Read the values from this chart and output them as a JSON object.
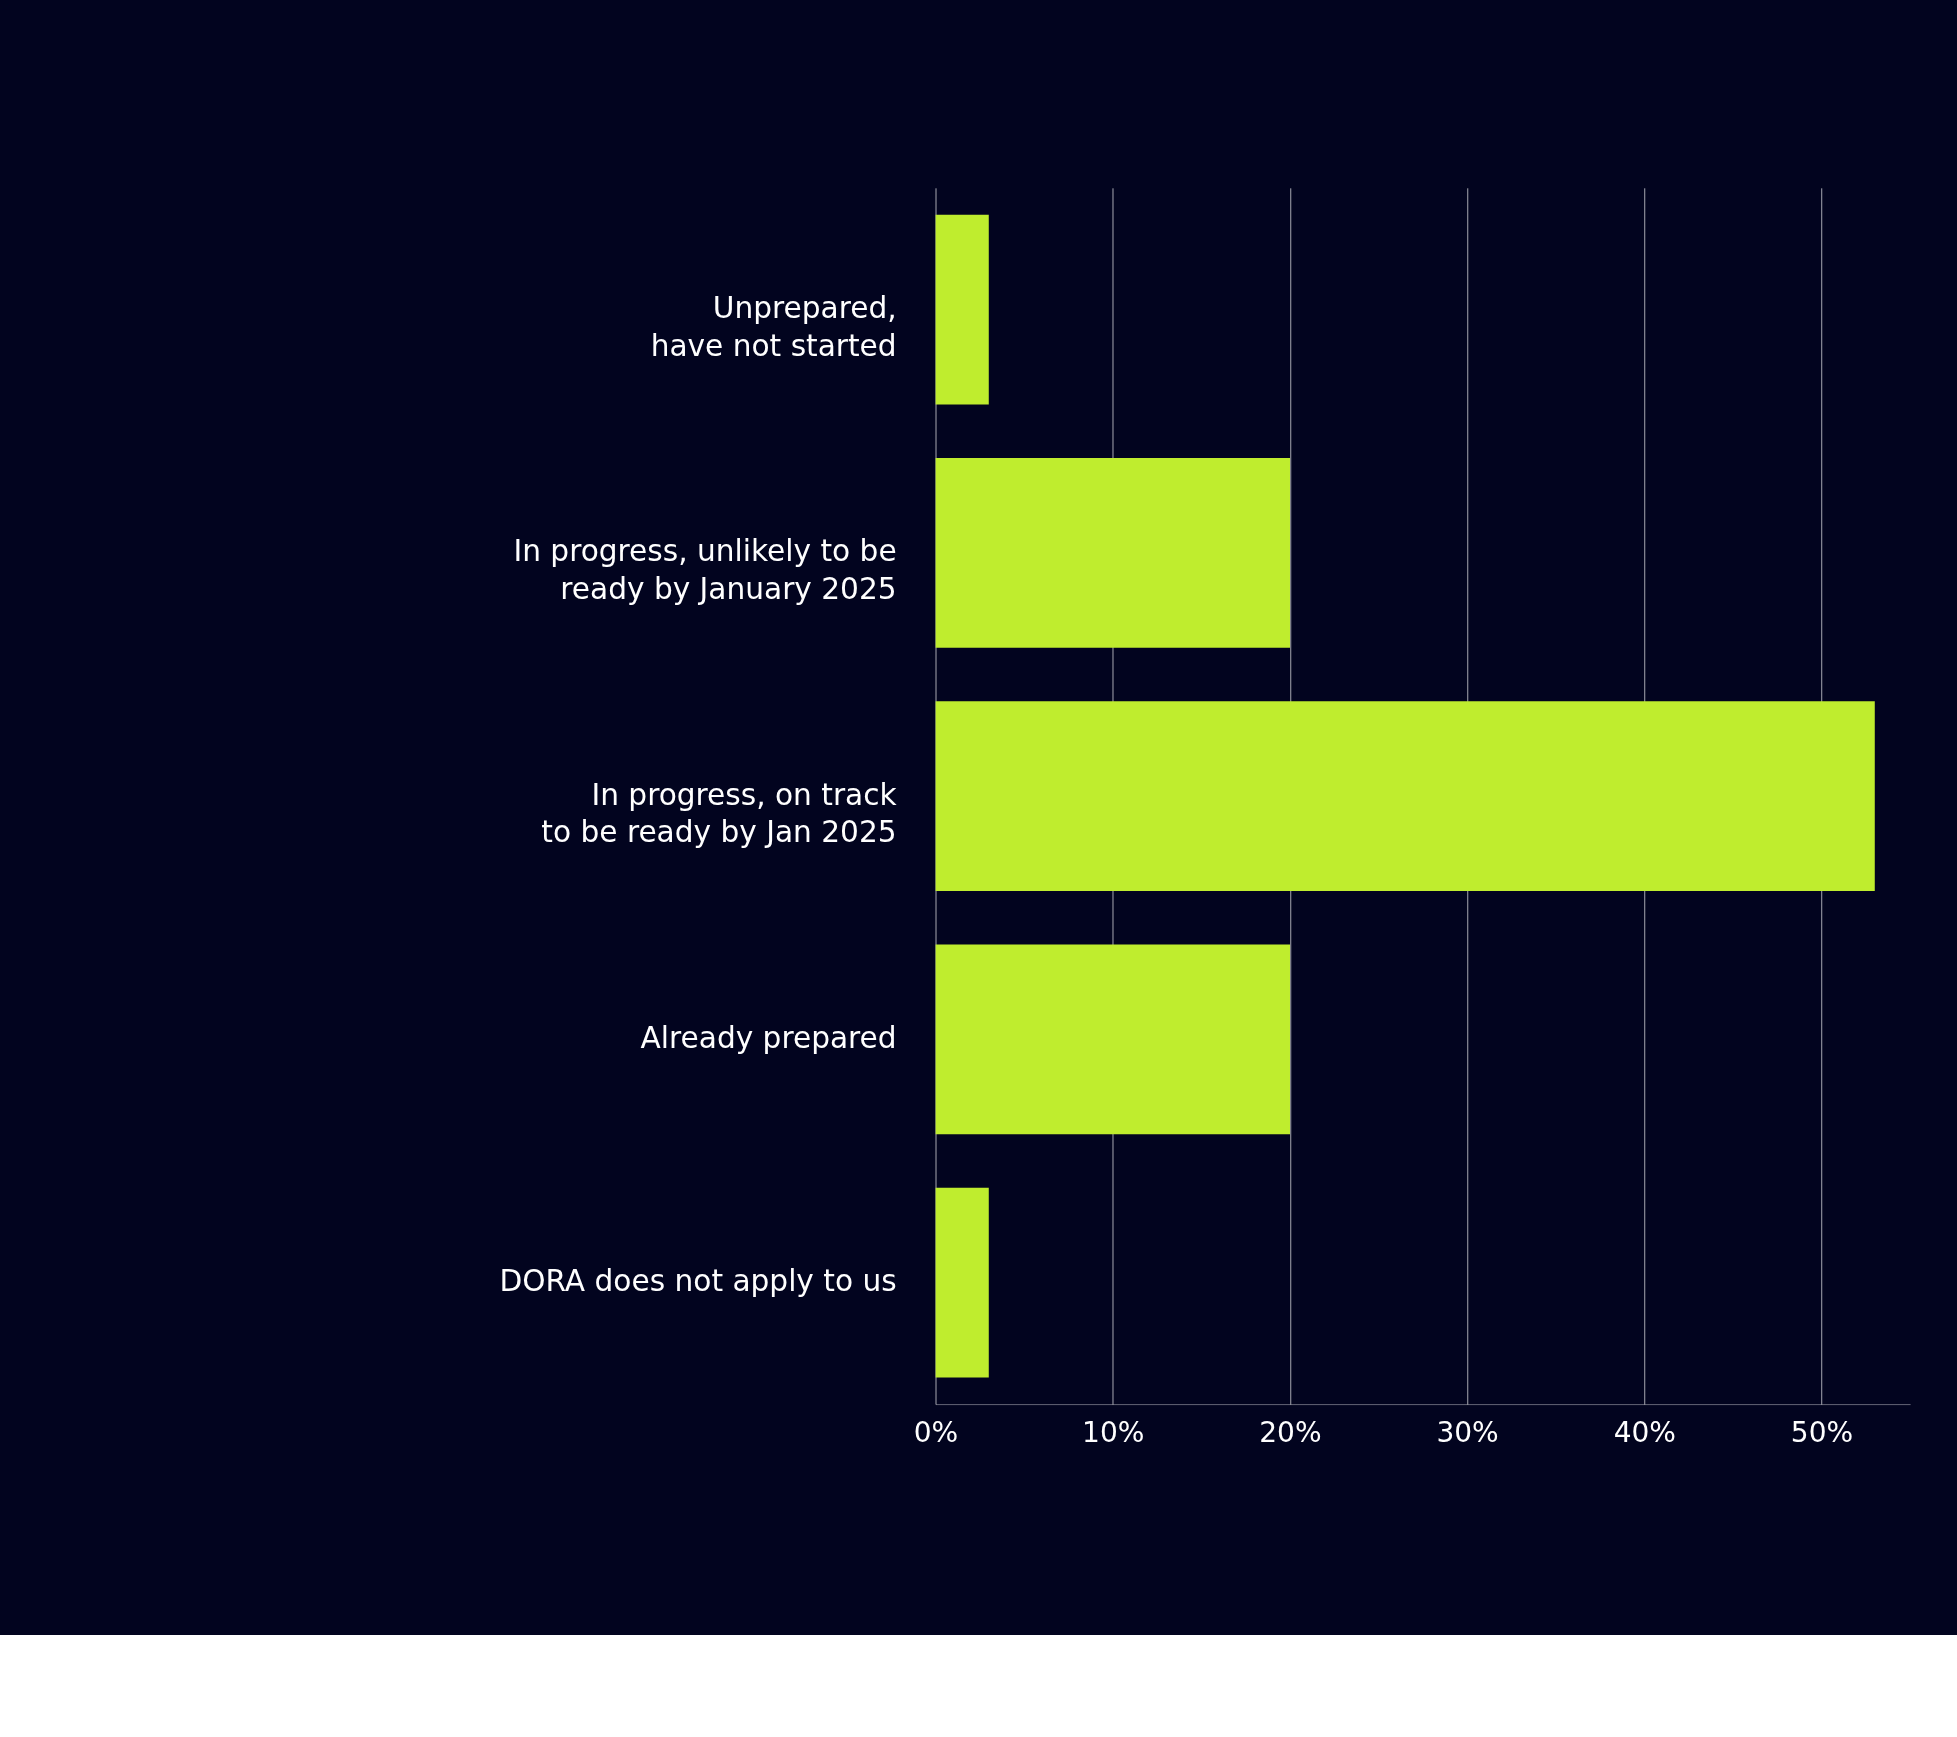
{
  "chart_data": {
    "type": "bar",
    "orientation": "horizontal",
    "categories": [
      "Unprepared,\nhave not started",
      "In progress, unlikely to be\nready by January  2025",
      "In progress, on track\nto be ready by Jan 2025",
      "Already prepared",
      "DORA does not apply to us"
    ],
    "values": [
      3,
      20,
      53,
      20,
      3
    ],
    "color": "#bfed2e",
    "xlim": [
      0,
      55
    ],
    "xticks": [
      {
        "value": 0,
        "label": "0%"
      },
      {
        "value": 10,
        "label": "10%"
      },
      {
        "value": 20,
        "label": "20%"
      },
      {
        "value": 30,
        "label": "30%"
      },
      {
        "value": 40,
        "label": "40%"
      },
      {
        "value": 50,
        "label": "50%"
      }
    ],
    "grid": "x"
  }
}
